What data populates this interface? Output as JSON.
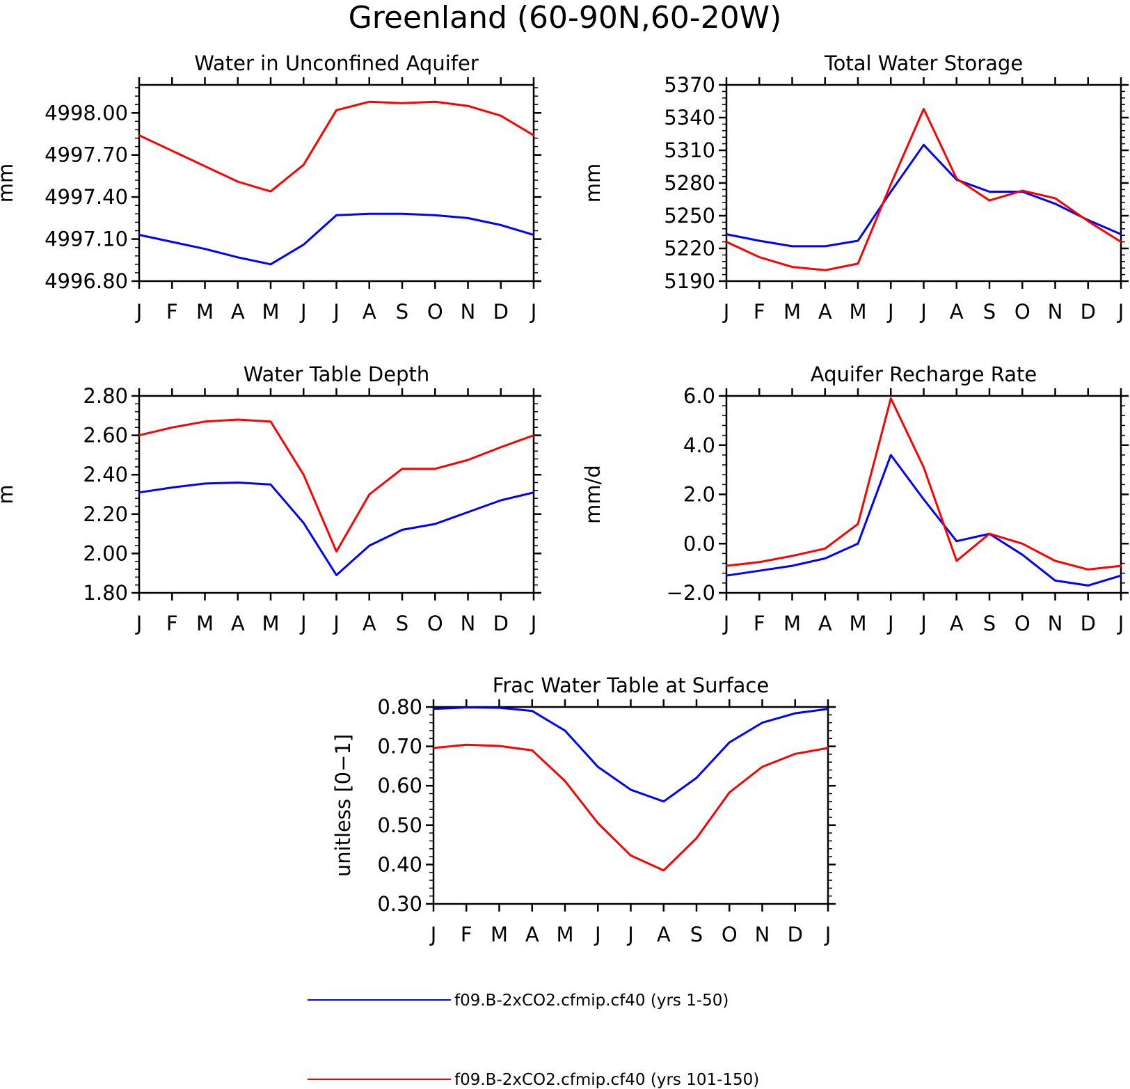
{
  "figure": {
    "title": "Greenland (60-90N,60-20W)"
  },
  "series_styles": {
    "run1_color": "#0000ff",
    "run2_color": "#ff0000"
  },
  "legend": {
    "entries": [
      {
        "label": "f09.B-2xCO2.cfmip.cf40 (yrs 1-50)",
        "color": "#0000ff"
      },
      {
        "label": "f09.B-2xCO2.cfmip.cf40 (yrs 101-150)",
        "color": "#ff0000"
      }
    ]
  },
  "chart_data": [
    {
      "type": "line",
      "title": "Water in Unconfined Aquifer",
      "ylabel": "mm",
      "xlabel": "",
      "categories": [
        "J",
        "F",
        "M",
        "A",
        "M",
        "J",
        "J",
        "A",
        "S",
        "O",
        "N",
        "D",
        "J"
      ],
      "ylim": [
        4996.8,
        4998.2
      ],
      "yticks": [
        4996.8,
        4997.1,
        4997.4,
        4997.7,
        4998.0
      ],
      "ytick_labels": [
        "4996.80",
        "4997.10",
        "4997.40",
        "4997.70",
        "4998.00"
      ],
      "series": [
        {
          "color": "#0000ff",
          "values": [
            4997.13,
            4997.08,
            4997.03,
            4996.97,
            4996.92,
            4997.06,
            4997.27,
            4997.28,
            4997.28,
            4997.27,
            4997.25,
            4997.2,
            4997.13
          ]
        },
        {
          "color": "#ff0000",
          "values": [
            4997.84,
            4997.73,
            4997.62,
            4997.51,
            4997.44,
            4997.63,
            4998.02,
            4998.08,
            4998.07,
            4998.08,
            4998.05,
            4997.98,
            4997.84
          ]
        }
      ]
    },
    {
      "type": "line",
      "title": "Total Water Storage",
      "ylabel": "mm",
      "xlabel": "",
      "categories": [
        "J",
        "F",
        "M",
        "A",
        "M",
        "J",
        "J",
        "A",
        "S",
        "O",
        "N",
        "D",
        "J"
      ],
      "ylim": [
        5190,
        5370
      ],
      "yticks": [
        5190,
        5220,
        5250,
        5280,
        5310,
        5340,
        5370
      ],
      "ytick_labels": [
        "5190",
        "5220",
        "5250",
        "5280",
        "5310",
        "5340",
        "5370"
      ],
      "series": [
        {
          "color": "#0000ff",
          "values": [
            5233,
            5227,
            5222,
            5222,
            5227,
            5272,
            5315,
            5283,
            5272,
            5272,
            5261,
            5246,
            5233
          ]
        },
        {
          "color": "#ff0000",
          "values": [
            5226,
            5212,
            5203,
            5200,
            5206,
            5279,
            5348,
            5284,
            5264,
            5273,
            5266,
            5245,
            5226
          ]
        }
      ]
    },
    {
      "type": "line",
      "title": "Water Table Depth",
      "ylabel": "m",
      "xlabel": "",
      "categories": [
        "J",
        "F",
        "M",
        "A",
        "M",
        "J",
        "J",
        "A",
        "S",
        "O",
        "N",
        "D",
        "J"
      ],
      "ylim": [
        1.8,
        2.8
      ],
      "yticks": [
        1.8,
        2.0,
        2.2,
        2.4,
        2.6,
        2.8
      ],
      "ytick_labels": [
        "1.80",
        "2.00",
        "2.20",
        "2.40",
        "2.60",
        "2.80"
      ],
      "series": [
        {
          "color": "#0000ff",
          "values": [
            2.31,
            2.335,
            2.355,
            2.36,
            2.35,
            2.155,
            1.89,
            2.04,
            2.12,
            2.15,
            2.21,
            2.27,
            2.31
          ]
        },
        {
          "color": "#ff0000",
          "values": [
            2.6,
            2.64,
            2.67,
            2.68,
            2.67,
            2.4,
            2.01,
            2.3,
            2.43,
            2.43,
            2.475,
            2.54,
            2.6
          ]
        }
      ]
    },
    {
      "type": "line",
      "title": "Aquifer Recharge Rate",
      "ylabel": "mm/d",
      "xlabel": "",
      "categories": [
        "J",
        "F",
        "M",
        "A",
        "M",
        "J",
        "J",
        "A",
        "S",
        "O",
        "N",
        "D",
        "J"
      ],
      "ylim": [
        -2.0,
        6.0
      ],
      "yticks": [
        -2.0,
        0.0,
        2.0,
        4.0,
        6.0
      ],
      "ytick_labels": [
        "-2.0",
        "0.0",
        "2.0",
        "4.0",
        "6.0"
      ],
      "series": [
        {
          "color": "#0000ff",
          "values": [
            -1.3,
            -1.1,
            -0.9,
            -0.6,
            0.0,
            3.6,
            1.8,
            0.1,
            0.4,
            -0.45,
            -1.5,
            -1.7,
            -1.3
          ]
        },
        {
          "color": "#ff0000",
          "values": [
            -0.9,
            -0.75,
            -0.5,
            -0.2,
            0.8,
            5.9,
            3.1,
            -0.7,
            0.4,
            0.0,
            -0.7,
            -1.05,
            -0.9
          ]
        }
      ]
    },
    {
      "type": "line",
      "title": "Frac Water Table at Surface",
      "ylabel": "unitless [0-1]",
      "xlabel": "",
      "categories": [
        "J",
        "F",
        "M",
        "A",
        "M",
        "J",
        "J",
        "A",
        "S",
        "O",
        "N",
        "D",
        "J"
      ],
      "ylim": [
        0.3,
        0.8
      ],
      "yticks": [
        0.3,
        0.4,
        0.5,
        0.6,
        0.7,
        0.8
      ],
      "ytick_labels": [
        "0.30",
        "0.40",
        "0.50",
        "0.60",
        "0.70",
        "0.80"
      ],
      "series": [
        {
          "color": "#0000ff",
          "values": [
            0.795,
            0.799,
            0.798,
            0.79,
            0.74,
            0.648,
            0.59,
            0.56,
            0.62,
            0.71,
            0.76,
            0.784,
            0.795
          ]
        },
        {
          "color": "#ff0000",
          "values": [
            0.696,
            0.704,
            0.701,
            0.69,
            0.612,
            0.505,
            0.423,
            0.385,
            0.467,
            0.583,
            0.648,
            0.681,
            0.696
          ]
        }
      ]
    }
  ]
}
